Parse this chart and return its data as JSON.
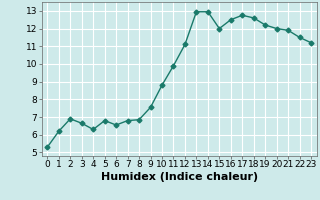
{
  "x": [
    0,
    1,
    2,
    3,
    4,
    5,
    6,
    7,
    8,
    9,
    10,
    11,
    12,
    13,
    14,
    15,
    16,
    17,
    18,
    19,
    20,
    21,
    22,
    23
  ],
  "y": [
    5.3,
    6.2,
    6.9,
    6.65,
    6.3,
    6.8,
    6.55,
    6.8,
    6.85,
    7.55,
    8.8,
    9.9,
    11.1,
    12.95,
    12.95,
    12.0,
    12.5,
    12.75,
    12.6,
    12.2,
    12.0,
    11.9,
    11.5,
    11.2
  ],
  "line_color": "#1a7a6a",
  "marker": "D",
  "marker_size": 2.5,
  "bg_color": "#ceeaea",
  "grid_color": "#ffffff",
  "xlabel": "Humidex (Indice chaleur)",
  "xlabel_fontsize": 8,
  "xlim": [
    -0.5,
    23.5
  ],
  "ylim": [
    4.8,
    13.5
  ],
  "yticks": [
    5,
    6,
    7,
    8,
    9,
    10,
    11,
    12,
    13
  ],
  "xticks": [
    0,
    1,
    2,
    3,
    4,
    5,
    6,
    7,
    8,
    9,
    10,
    11,
    12,
    13,
    14,
    15,
    16,
    17,
    18,
    19,
    20,
    21,
    22,
    23
  ],
  "tick_fontsize": 6.5,
  "line_width": 1.0
}
